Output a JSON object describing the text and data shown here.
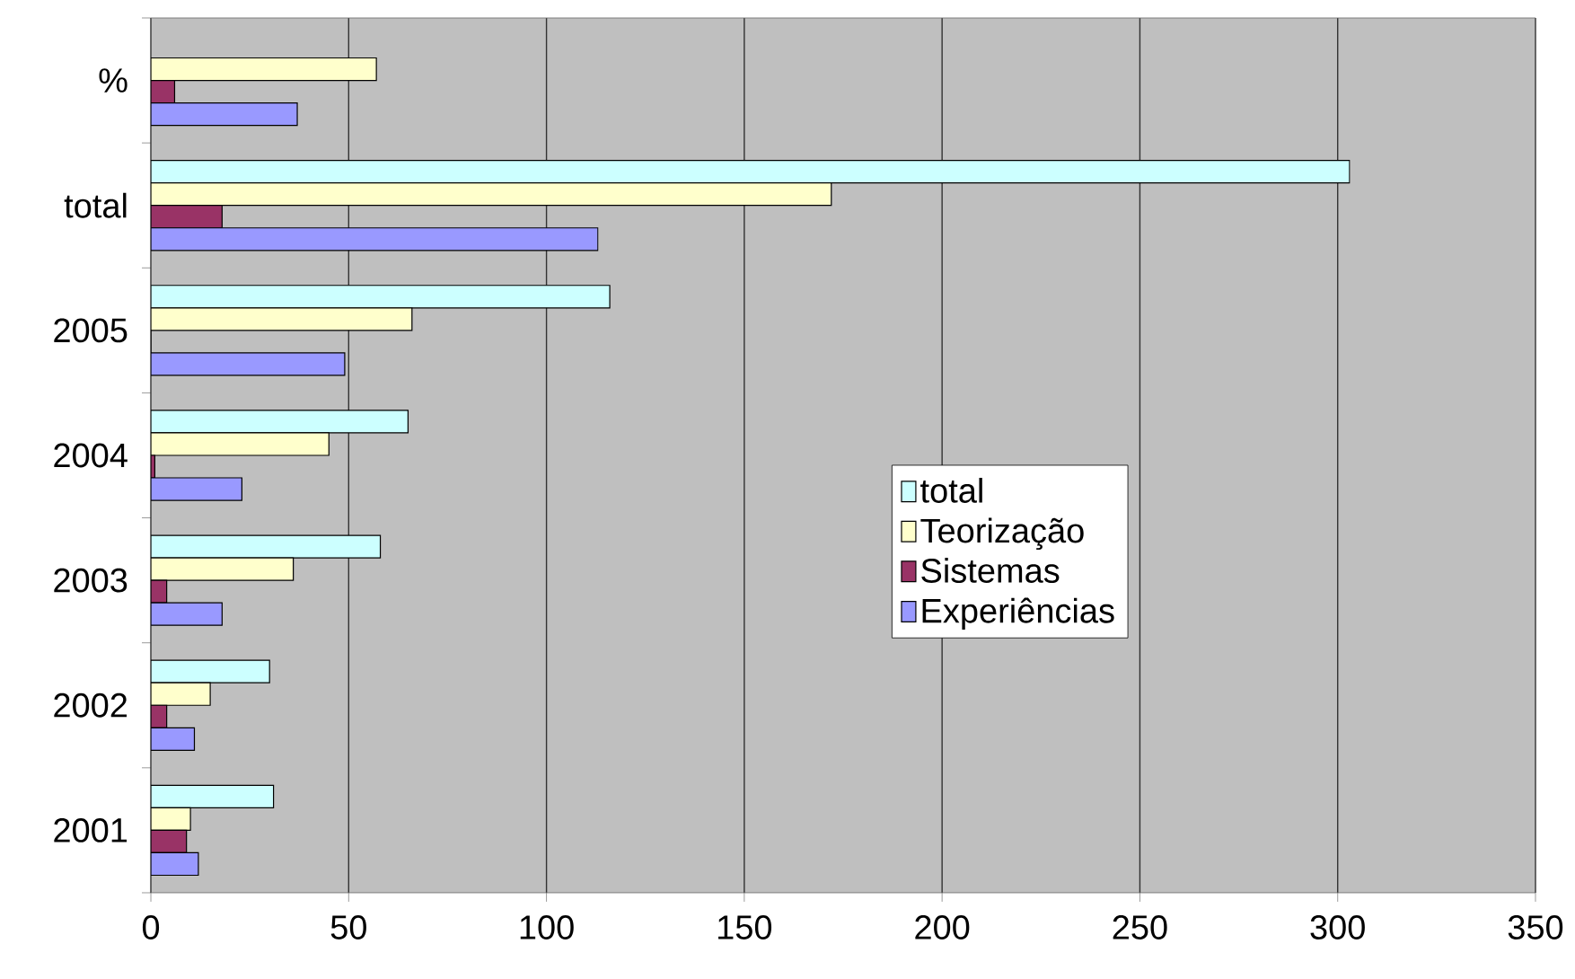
{
  "chart_data": {
    "type": "bar",
    "orientation": "horizontal",
    "categories": [
      "%",
      "total",
      "2005",
      "2004",
      "2003",
      "2002",
      "2001"
    ],
    "series": [
      {
        "name": "total",
        "color": "#ccffff",
        "values": [
          null,
          303,
          116,
          65,
          58,
          30,
          31
        ]
      },
      {
        "name": "Teorização",
        "color": "#ffffcc",
        "values": [
          57,
          172,
          66,
          45,
          36,
          15,
          10
        ]
      },
      {
        "name": "Sistemas",
        "color": "#993366",
        "values": [
          6,
          18,
          0,
          1,
          4,
          4,
          9
        ]
      },
      {
        "name": "Experiências",
        "color": "#9999ff",
        "values": [
          37,
          113,
          49,
          23,
          18,
          11,
          12
        ]
      }
    ],
    "xlim": [
      0,
      350
    ],
    "xticks": [
      0,
      50,
      100,
      150,
      200,
      250,
      300,
      350
    ],
    "grid": "x",
    "legend": "right"
  }
}
